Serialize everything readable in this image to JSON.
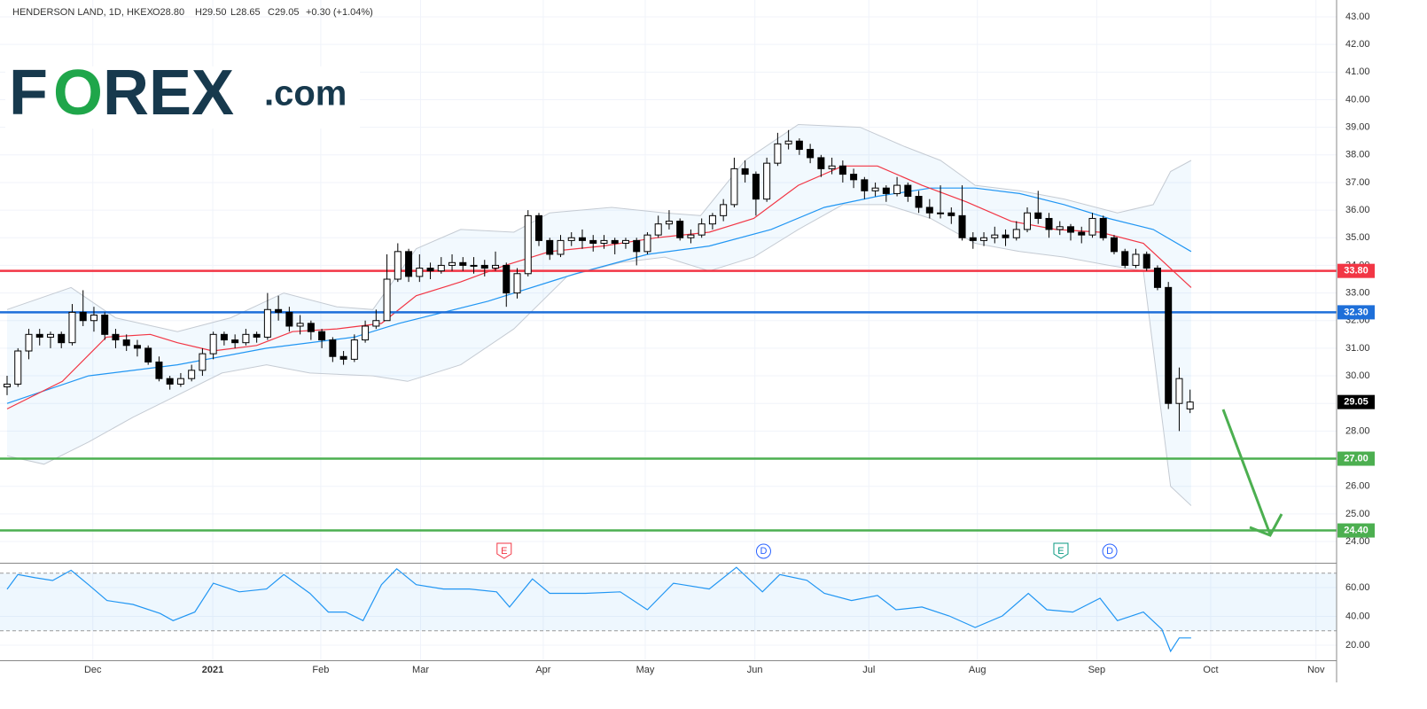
{
  "header": {
    "symbol": "HENDERSON LAND, 1D, HKEX",
    "open": "O28.80",
    "high": "H29.50",
    "low": "L28.65",
    "close": "C29.05",
    "change": "+0.30 (+1.04%)"
  },
  "logo": {
    "f": "F",
    "o": "O",
    "rex": "REX",
    "com": ".com"
  },
  "chart_data": [
    {
      "type": "candlestick",
      "color_up": "#ffffff",
      "color_down": "#000000",
      "ohlc": [
        [
          29.6,
          30.0,
          29.3,
          29.7
        ],
        [
          29.7,
          31.0,
          29.6,
          30.9
        ],
        [
          30.9,
          31.7,
          30.6,
          31.5
        ],
        [
          31.5,
          31.7,
          31.1,
          31.4
        ],
        [
          31.4,
          31.6,
          31.0,
          31.5
        ],
        [
          31.5,
          31.6,
          31.0,
          31.2
        ],
        [
          31.2,
          32.6,
          31.1,
          32.3
        ],
        [
          32.3,
          33.1,
          31.8,
          32.0
        ],
        [
          32.0,
          32.5,
          31.6,
          32.2
        ],
        [
          32.2,
          32.3,
          31.3,
          31.5
        ],
        [
          31.5,
          31.7,
          31.0,
          31.3
        ],
        [
          31.3,
          31.5,
          30.9,
          31.1
        ],
        [
          31.1,
          31.3,
          30.7,
          31.0
        ],
        [
          31.0,
          31.1,
          30.4,
          30.5
        ],
        [
          30.5,
          30.7,
          29.8,
          29.9
        ],
        [
          29.9,
          30.0,
          29.5,
          29.7
        ],
        [
          29.7,
          30.1,
          29.6,
          29.9
        ],
        [
          29.9,
          30.4,
          29.8,
          30.2
        ],
        [
          30.2,
          31.0,
          30.0,
          30.8
        ],
        [
          30.8,
          31.6,
          30.6,
          31.5
        ],
        [
          31.5,
          31.6,
          31.1,
          31.3
        ],
        [
          31.3,
          31.5,
          31.0,
          31.2
        ],
        [
          31.2,
          31.7,
          31.1,
          31.5
        ],
        [
          31.5,
          31.6,
          31.2,
          31.4
        ],
        [
          31.4,
          33.0,
          31.3,
          32.4
        ],
        [
          32.4,
          32.9,
          32.0,
          32.3
        ],
        [
          32.3,
          32.5,
          31.6,
          31.8
        ],
        [
          31.8,
          32.2,
          31.5,
          31.9
        ],
        [
          31.9,
          32.0,
          31.3,
          31.6
        ],
        [
          31.6,
          31.7,
          31.0,
          31.3
        ],
        [
          31.3,
          31.4,
          30.5,
          30.7
        ],
        [
          30.7,
          30.9,
          30.4,
          30.6
        ],
        [
          30.6,
          31.5,
          30.5,
          31.3
        ],
        [
          31.3,
          32.0,
          31.2,
          31.8
        ],
        [
          31.8,
          32.4,
          31.7,
          32.0
        ],
        [
          32.0,
          34.4,
          32.0,
          33.5
        ],
        [
          33.5,
          34.8,
          33.4,
          34.5
        ],
        [
          34.5,
          34.6,
          33.4,
          33.6
        ],
        [
          33.6,
          34.4,
          33.4,
          33.9
        ],
        [
          33.9,
          34.1,
          33.5,
          33.8
        ],
        [
          33.8,
          34.3,
          33.7,
          34.0
        ],
        [
          34.0,
          34.4,
          33.8,
          34.1
        ],
        [
          34.1,
          34.3,
          33.8,
          34.0
        ],
        [
          34.0,
          34.3,
          33.7,
          34.0
        ],
        [
          34.0,
          34.2,
          33.6,
          33.9
        ],
        [
          33.9,
          34.5,
          33.8,
          34.0
        ],
        [
          34.0,
          34.1,
          32.5,
          33.0
        ],
        [
          33.0,
          33.9,
          32.8,
          33.7
        ],
        [
          33.7,
          36.0,
          33.6,
          35.8
        ],
        [
          35.8,
          35.9,
          34.7,
          34.9
        ],
        [
          34.9,
          35.0,
          34.2,
          34.4
        ],
        [
          34.4,
          35.1,
          34.3,
          34.9
        ],
        [
          34.9,
          35.2,
          34.7,
          35.0
        ],
        [
          35.0,
          35.3,
          34.6,
          34.9
        ],
        [
          34.9,
          35.1,
          34.5,
          34.8
        ],
        [
          34.8,
          35.1,
          34.6,
          34.9
        ],
        [
          34.9,
          35.0,
          34.4,
          34.8
        ],
        [
          34.8,
          35.0,
          34.6,
          34.9
        ],
        [
          34.9,
          35.0,
          34.0,
          34.5
        ],
        [
          34.5,
          35.2,
          34.4,
          35.1
        ],
        [
          35.1,
          35.8,
          35.0,
          35.5
        ],
        [
          35.5,
          36.0,
          35.3,
          35.6
        ],
        [
          35.6,
          35.7,
          34.9,
          35.0
        ],
        [
          35.0,
          35.3,
          34.8,
          35.1
        ],
        [
          35.1,
          35.7,
          35.0,
          35.5
        ],
        [
          35.5,
          35.9,
          35.3,
          35.8
        ],
        [
          35.8,
          36.4,
          35.6,
          36.2
        ],
        [
          36.2,
          37.9,
          36.1,
          37.5
        ],
        [
          37.5,
          37.8,
          37.0,
          37.3
        ],
        [
          37.3,
          37.4,
          35.8,
          36.4
        ],
        [
          36.4,
          37.9,
          36.3,
          37.7
        ],
        [
          37.7,
          38.8,
          37.6,
          38.4
        ],
        [
          38.4,
          38.9,
          38.2,
          38.5
        ],
        [
          38.5,
          38.6,
          38.0,
          38.2
        ],
        [
          38.2,
          38.4,
          37.7,
          37.9
        ],
        [
          37.9,
          38.0,
          37.2,
          37.5
        ],
        [
          37.5,
          37.9,
          37.3,
          37.6
        ],
        [
          37.6,
          37.8,
          37.0,
          37.3
        ],
        [
          37.3,
          37.5,
          36.8,
          37.1
        ],
        [
          37.1,
          37.2,
          36.4,
          36.7
        ],
        [
          36.7,
          37.0,
          36.5,
          36.8
        ],
        [
          36.8,
          36.9,
          36.3,
          36.6
        ],
        [
          36.6,
          37.2,
          36.5,
          36.9
        ],
        [
          36.9,
          37.0,
          36.3,
          36.5
        ],
        [
          36.5,
          36.7,
          35.9,
          36.1
        ],
        [
          36.1,
          36.4,
          35.7,
          35.9
        ],
        [
          35.9,
          36.9,
          35.7,
          35.9
        ],
        [
          35.9,
          36.1,
          35.5,
          35.8
        ],
        [
          35.8,
          36.9,
          34.9,
          35.0
        ],
        [
          35.0,
          35.2,
          34.6,
          34.9
        ],
        [
          34.9,
          35.2,
          34.7,
          35.0
        ],
        [
          35.0,
          35.4,
          34.8,
          35.1
        ],
        [
          35.1,
          35.3,
          34.7,
          35.0
        ],
        [
          35.0,
          35.6,
          34.9,
          35.3
        ],
        [
          35.3,
          36.1,
          35.2,
          35.9
        ],
        [
          35.9,
          36.7,
          35.5,
          35.7
        ],
        [
          35.7,
          35.9,
          35.0,
          35.3
        ],
        [
          35.3,
          35.6,
          35.1,
          35.4
        ],
        [
          35.4,
          35.5,
          34.9,
          35.2
        ],
        [
          35.2,
          35.4,
          34.8,
          35.1
        ],
        [
          35.1,
          35.9,
          35.0,
          35.7
        ],
        [
          35.7,
          35.8,
          34.9,
          35.0
        ],
        [
          35.0,
          35.1,
          34.4,
          34.5
        ],
        [
          34.5,
          34.6,
          33.9,
          34.0
        ],
        [
          34.0,
          34.6,
          33.9,
          34.4
        ],
        [
          34.4,
          34.5,
          33.8,
          33.9
        ],
        [
          33.9,
          34.0,
          33.1,
          33.2
        ],
        [
          33.2,
          33.4,
          28.8,
          29.0
        ],
        [
          29.0,
          30.3,
          28.0,
          29.9
        ],
        [
          28.8,
          29.5,
          28.65,
          29.05
        ]
      ],
      "xlim": [
        0,
        122.5
      ],
      "ylim": [
        23.23,
        43.61
      ],
      "yticks": [
        {
          "value": 24,
          "label": "24.00"
        },
        {
          "value": 25,
          "label": "25.00"
        },
        {
          "value": 26,
          "label": "26.00"
        },
        {
          "value": 27,
          "label": "27.00"
        },
        {
          "value": 28,
          "label": "28.00"
        },
        {
          "value": 29,
          "label": "29.00"
        },
        {
          "value": 30,
          "label": "30.00"
        },
        {
          "value": 31,
          "label": "31.00"
        },
        {
          "value": 32,
          "label": "32.00"
        },
        {
          "value": 33,
          "label": "33.00"
        },
        {
          "value": 34,
          "label": "34.00"
        },
        {
          "value": 35,
          "label": "35.00"
        },
        {
          "value": 36,
          "label": "36.00"
        },
        {
          "value": 37,
          "label": "37.00"
        },
        {
          "value": 38,
          "label": "38.00"
        },
        {
          "value": 39,
          "label": "39.00"
        },
        {
          "value": 40,
          "label": "40.00"
        },
        {
          "value": 41,
          "label": "41.00"
        },
        {
          "value": 42,
          "label": "42.00"
        },
        {
          "value": 43,
          "label": "43.00"
        }
      ],
      "xticks": [
        {
          "value": 7.9,
          "label": "Dec"
        },
        {
          "value": 18.95,
          "label": "2021"
        },
        {
          "value": 28.9,
          "label": "Feb"
        },
        {
          "value": 38.1,
          "label": "Mar"
        },
        {
          "value": 49.4,
          "label": "Apr"
        },
        {
          "value": 58.8,
          "label": "May"
        },
        {
          "value": 68.9,
          "label": "Jun"
        },
        {
          "value": 79.4,
          "label": "Jul"
        },
        {
          "value": 89.4,
          "label": "Aug"
        },
        {
          "value": 100.4,
          "label": "Sep"
        },
        {
          "value": 110.9,
          "label": "Oct"
        },
        {
          "value": 120.6,
          "label": "Nov"
        }
      ],
      "grid": true,
      "bands": {
        "fill": "rgba(33,150,243,0.06)",
        "color": "#c5cbd3",
        "upper": {
          "x": [
            0,
            5.9,
            10.0,
            15.7,
            20.6,
            25.5,
            30.4,
            33.7,
            37.7,
            41.8,
            46.7,
            50.0,
            55.7,
            60.6,
            63.9,
            68.0,
            72.9,
            78.6,
            82.7,
            86.0,
            89.2,
            93.3,
            97.4,
            102.3,
            105.6,
            107.2,
            109.1
          ],
          "values": [
            32.4,
            33.2,
            32.1,
            31.6,
            32.1,
            33.0,
            32.5,
            32.4,
            34.6,
            35.3,
            35.2,
            35.9,
            36.1,
            35.9,
            35.8,
            37.8,
            39.1,
            39.0,
            38.3,
            37.8,
            36.9,
            36.7,
            36.4,
            35.9,
            36.2,
            37.4,
            37.8
          ]
        },
        "lower": {
          "x": [
            0,
            3.4,
            7.5,
            11.6,
            15.7,
            19.8,
            23.9,
            27.9,
            33.7,
            36.9,
            41.8,
            46.7,
            51.6,
            56.5,
            60.6,
            64.7,
            68.8,
            72.9,
            77.0,
            81.0,
            85.1,
            89.2,
            93.3,
            97.4,
            101.5,
            104.7,
            107.2,
            109.1
          ],
          "values": [
            27.1,
            26.8,
            27.6,
            28.5,
            29.3,
            30.1,
            30.4,
            30.1,
            30.0,
            29.8,
            30.4,
            31.7,
            33.6,
            34.1,
            34.3,
            33.8,
            34.3,
            35.3,
            36.2,
            36.2,
            35.7,
            34.8,
            34.5,
            34.3,
            34.0,
            33.8,
            26.0,
            25.3
          ]
        }
      },
      "lines": [
        {
          "color": "#2196f3",
          "x": [
            0,
            7.5,
            15.7,
            23.9,
            32.0,
            36.1,
            44.3,
            52.4,
            59.0,
            64.7,
            70.4,
            75.3,
            80.2,
            85.1,
            89.2,
            93.3,
            97.4,
            101.5,
            105.6,
            109.1
          ],
          "values": [
            29.0,
            30.0,
            30.4,
            31.0,
            31.4,
            31.9,
            32.7,
            33.7,
            34.4,
            34.7,
            35.3,
            36.1,
            36.5,
            36.8,
            36.8,
            36.6,
            36.2,
            35.7,
            35.3,
            34.5
          ]
        },
        {
          "color": "#f23645",
          "x": [
            0,
            5.1,
            9.15,
            13.2,
            15.7,
            18.95,
            23.0,
            26.3,
            30.4,
            34.5,
            37.7,
            41.8,
            45.9,
            50.0,
            54.9,
            59.8,
            64.7,
            68.8,
            72.9,
            77.0,
            80.2,
            84.3,
            88.4,
            92.5,
            96.6,
            100.7,
            104.7,
            109.1
          ],
          "values": [
            28.8,
            29.8,
            31.4,
            31.5,
            31.2,
            30.9,
            31.1,
            31.6,
            31.7,
            31.9,
            32.9,
            33.4,
            34.0,
            34.5,
            34.7,
            35.0,
            35.2,
            35.7,
            36.9,
            37.6,
            37.6,
            36.9,
            36.3,
            35.6,
            35.3,
            35.2,
            34.8,
            33.2
          ]
        }
      ],
      "levels": [
        {
          "value": 33.8,
          "label": "33.80",
          "color": "#f23645"
        },
        {
          "value": 32.3,
          "label": "32.30",
          "color": "#1e6fd9"
        },
        {
          "value": 27.0,
          "label": "27.00",
          "color": "#4caf50"
        },
        {
          "value": 24.4,
          "label": "24.40",
          "color": "#4caf50"
        }
      ],
      "last_price": {
        "value": 29.05,
        "label": "29.05",
        "color": "#000000"
      },
      "events": [
        {
          "x": 45.8,
          "label": "E",
          "color": "#f23645"
        },
        {
          "x": 69.7,
          "label": "D",
          "color": "#2962ff"
        },
        {
          "x": 97.1,
          "label": "E",
          "color": "#089981"
        },
        {
          "x": 101.6,
          "label": "D",
          "color": "#2962ff"
        }
      ]
    },
    {
      "type": "line",
      "color": "#2196f3",
      "band": [
        30,
        70
      ],
      "band_fill": "rgba(33,150,243,0.08)",
      "x": [
        0,
        1.0,
        2.6,
        4.2,
        5.9,
        7.5,
        9.2,
        11.6,
        14.1,
        15.3,
        17.3,
        19.0,
        21.4,
        23.9,
        25.5,
        27.9,
        29.6,
        31.2,
        32.8,
        34.5,
        35.9,
        37.7,
        40.2,
        42.6,
        45.1,
        46.3,
        48.4,
        50.0,
        53.3,
        56.5,
        59.0,
        61.4,
        64.7,
        67.2,
        69.6,
        71.2,
        73.7,
        75.3,
        77.8,
        80.2,
        81.9,
        84.3,
        86.8,
        89.2,
        91.7,
        94.1,
        95.8,
        98.2,
        100.7,
        102.3,
        104.7,
        106.4,
        107.2,
        108.0,
        109.1
      ],
      "values": [
        58.8,
        69,
        66.8,
        64.9,
        72,
        62,
        51,
        48.3,
        42,
        37,
        43,
        63,
        57,
        59,
        69,
        56,
        43,
        43,
        37,
        62,
        73,
        62,
        59,
        59,
        57,
        46.5,
        66,
        56,
        56,
        57,
        44.6,
        63,
        59,
        74,
        57,
        69,
        65,
        56,
        51,
        54.5,
        44.6,
        46.5,
        40.3,
        32.3,
        40.3,
        56,
        44.6,
        43,
        52.6,
        37,
        43,
        31,
        15.7,
        25,
        25
      ],
      "xlim": [
        0,
        122.5
      ],
      "ylim": [
        9.5,
        76.6
      ],
      "yticks": [
        {
          "value": 20,
          "label": "20.00"
        },
        {
          "value": 40,
          "label": "40.00"
        },
        {
          "value": 60,
          "label": "60.00"
        }
      ]
    }
  ]
}
